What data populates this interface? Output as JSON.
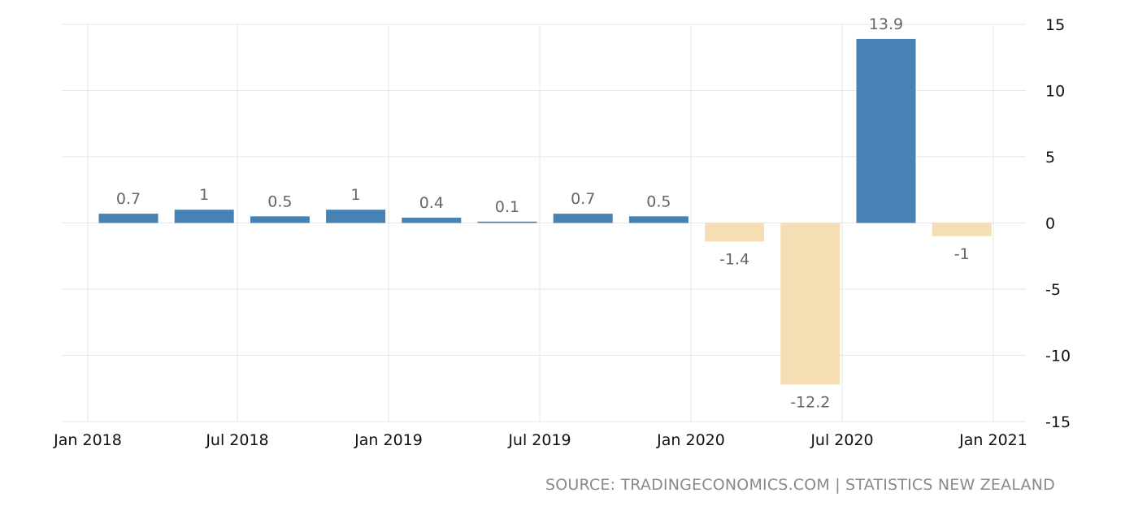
{
  "chart_data": {
    "type": "bar",
    "categories": [
      "Q1 2018",
      "Q2 2018",
      "Q3 2018",
      "Q4 2018",
      "Q1 2019",
      "Q2 2019",
      "Q3 2019",
      "Q4 2019",
      "Q1 2020",
      "Q2 2020",
      "Q3 2020",
      "Q4 2020"
    ],
    "values": [
      0.7,
      1,
      0.5,
      1,
      0.4,
      0.1,
      0.7,
      0.5,
      -1.4,
      -12.2,
      13.9,
      -1
    ],
    "value_labels": [
      "0.7",
      "1",
      "0.5",
      "1",
      "0.4",
      "0.1",
      "0.7",
      "0.5",
      "-1.4",
      "-12.2",
      "13.9",
      "-1"
    ],
    "x_tick_labels": [
      "Jan 2018",
      "Jul 2018",
      "Jan 2019",
      "Jul 2019",
      "Jan 2020",
      "Jul 2020",
      "Jan 2021"
    ],
    "y_ticks": [
      15,
      10,
      5,
      0,
      -5,
      -10,
      -15
    ],
    "ylim": [
      -15,
      15
    ],
    "y_axis_side": "right",
    "grid": true,
    "colors": {
      "positive": "#4682b4",
      "negative": "#f5deb3",
      "grid": "#e6e6e6"
    }
  },
  "source": "SOURCE: TRADINGECONOMICS.COM | STATISTICS NEW ZEALAND"
}
